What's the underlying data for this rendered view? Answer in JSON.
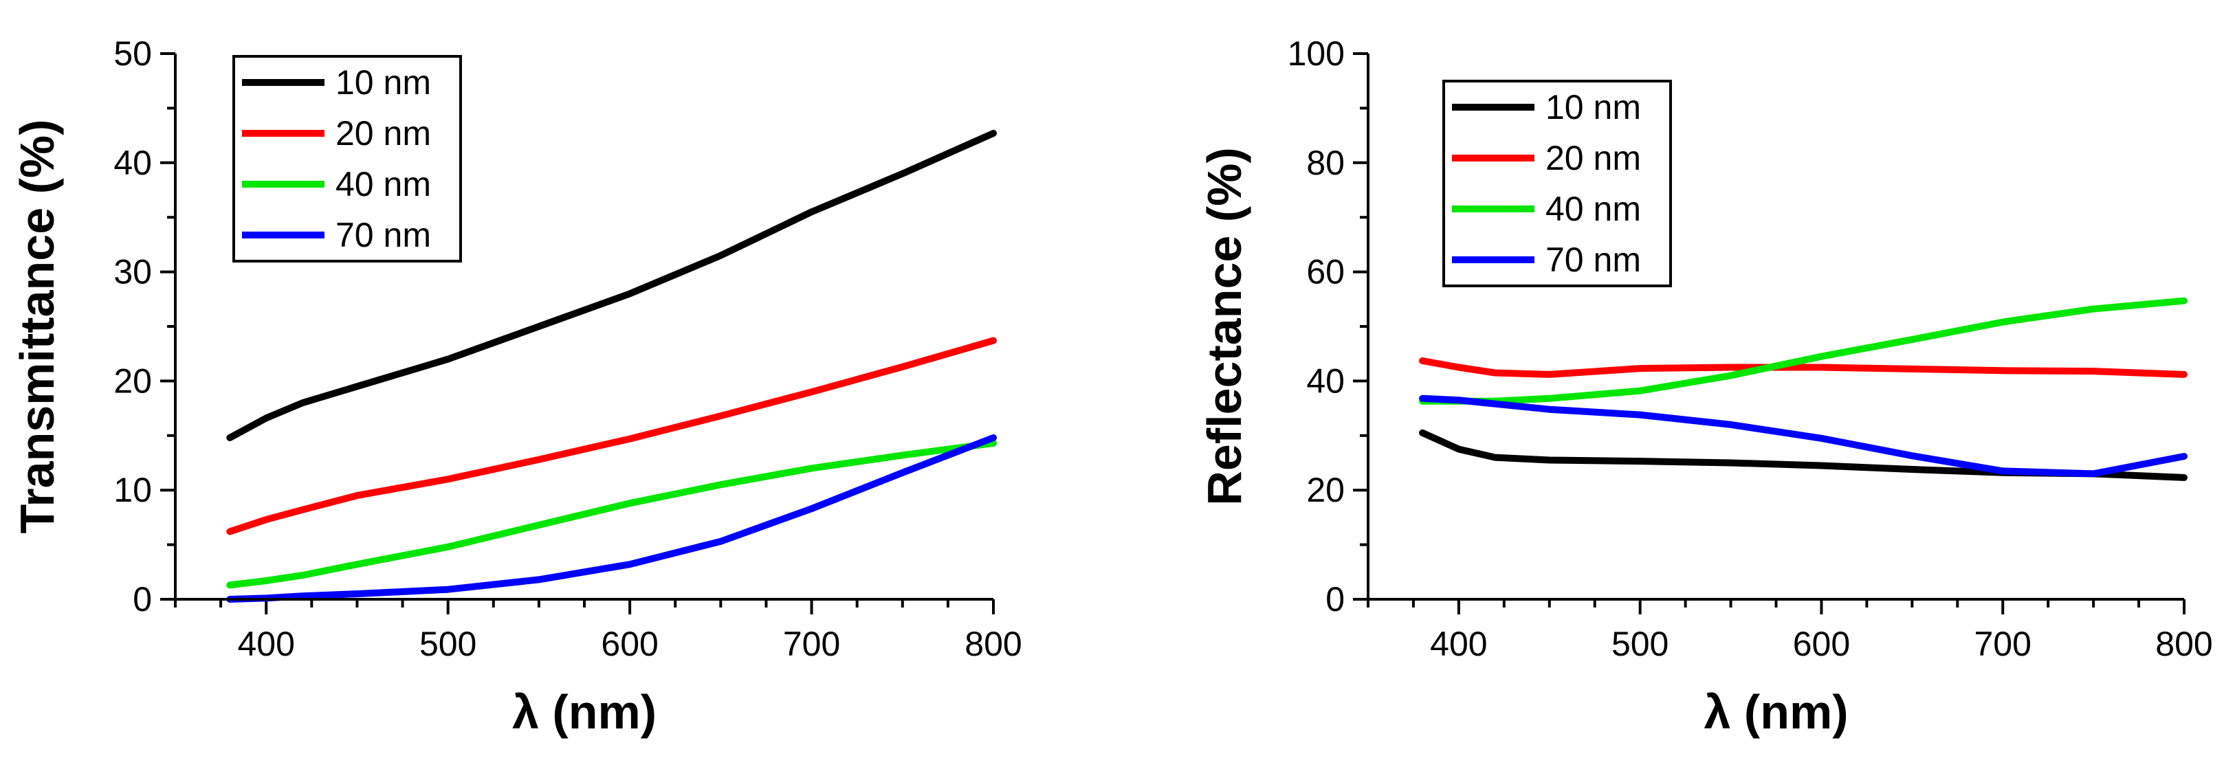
{
  "chart_data": [
    {
      "type": "line",
      "title": "",
      "xlabel": "λ (nm)",
      "ylabel": "Transmittance (%)",
      "xlim": [
        350,
        800
      ],
      "ylim": [
        0,
        50
      ],
      "xticks": [
        400,
        500,
        600,
        700,
        800
      ],
      "yticks": [
        0,
        10,
        20,
        30,
        40,
        50
      ],
      "legend_position": "top-left",
      "x": [
        380,
        400,
        420,
        450,
        500,
        550,
        600,
        650,
        700,
        750,
        800
      ],
      "series": [
        {
          "name": "10 nm",
          "color": "#000000",
          "values": [
            14.8,
            16.6,
            18.0,
            19.5,
            22.0,
            25.0,
            28.0,
            31.5,
            35.5,
            39.0,
            42.7
          ]
        },
        {
          "name": "20 nm",
          "color": "#ff0000",
          "values": [
            6.2,
            7.3,
            8.2,
            9.5,
            11.0,
            12.8,
            14.7,
            16.8,
            19.0,
            21.3,
            23.7
          ]
        },
        {
          "name": "40 nm",
          "color": "#00e600",
          "values": [
            1.3,
            1.7,
            2.2,
            3.2,
            4.8,
            6.8,
            8.8,
            10.5,
            12.0,
            13.2,
            14.3
          ]
        },
        {
          "name": "70 nm",
          "color": "#0000ff",
          "values": [
            0.0,
            0.1,
            0.3,
            0.5,
            0.9,
            1.8,
            3.2,
            5.3,
            8.3,
            11.6,
            14.8
          ]
        }
      ]
    },
    {
      "type": "line",
      "title": "",
      "xlabel": "λ (nm)",
      "ylabel": "Reflectance (%)",
      "xlim": [
        350,
        800
      ],
      "ylim": [
        0,
        100
      ],
      "xticks": [
        400,
        500,
        600,
        700,
        800
      ],
      "yticks": [
        0,
        20,
        40,
        60,
        80,
        100
      ],
      "legend_position": "top-left",
      "x": [
        380,
        400,
        420,
        450,
        500,
        550,
        600,
        650,
        700,
        750,
        800
      ],
      "series": [
        {
          "name": "10 nm",
          "color": "#000000",
          "values": [
            30.5,
            27.5,
            26.0,
            25.5,
            25.3,
            25.0,
            24.5,
            23.8,
            23.2,
            23.0,
            22.3
          ]
        },
        {
          "name": "20 nm",
          "color": "#ff0000",
          "values": [
            43.7,
            42.5,
            41.5,
            41.2,
            42.3,
            42.5,
            42.5,
            42.2,
            41.9,
            41.8,
            41.2
          ]
        },
        {
          "name": "40 nm",
          "color": "#00e600",
          "values": [
            36.3,
            36.3,
            36.3,
            36.8,
            38.2,
            41.0,
            44.5,
            47.6,
            50.8,
            53.2,
            54.7
          ]
        },
        {
          "name": "70 nm",
          "color": "#0000ff",
          "values": [
            36.8,
            36.5,
            35.8,
            34.8,
            33.8,
            32.0,
            29.5,
            26.3,
            23.5,
            23.0,
            26.2
          ]
        }
      ]
    }
  ]
}
